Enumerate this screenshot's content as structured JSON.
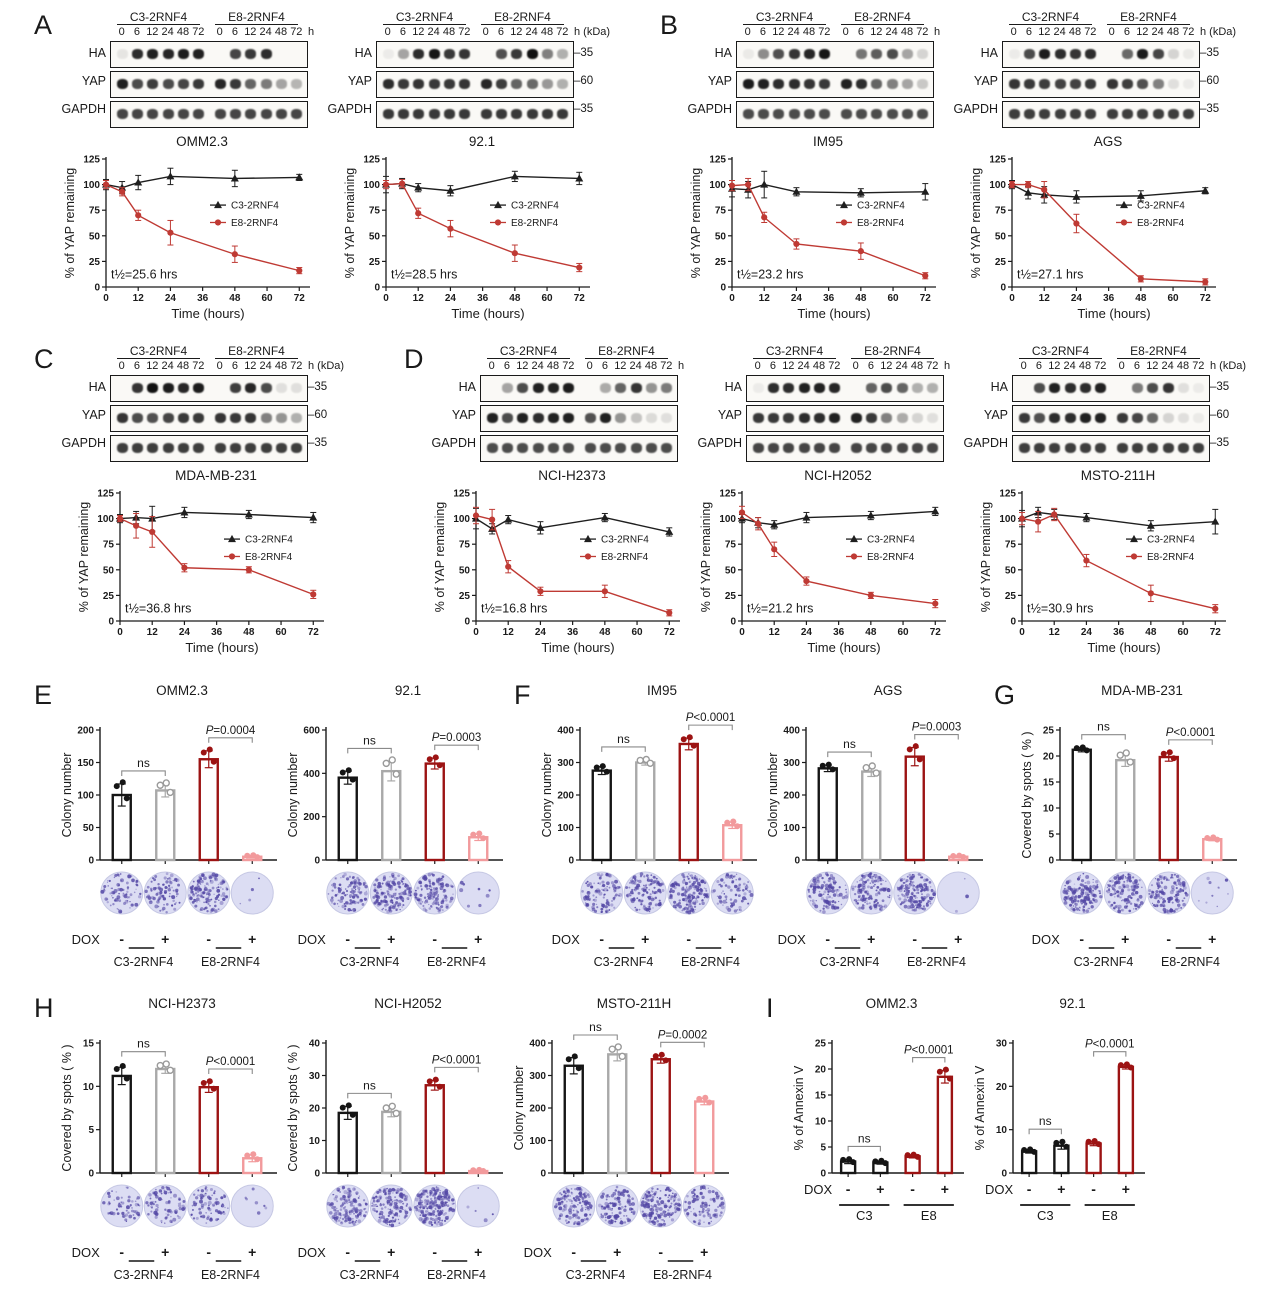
{
  "letters": {
    "a": "A",
    "b": "B",
    "c": "C",
    "d": "D",
    "e": "E",
    "f": "F",
    "g": "G",
    "h": "H",
    "i": "I"
  },
  "labels": {
    "rows": [
      "HA",
      "YAP",
      "GAPDH"
    ],
    "groups": [
      "C3-2RNF4",
      "E8-2RNF4"
    ],
    "time_points": [
      "0",
      "6",
      "12",
      "24",
      "48",
      "72"
    ],
    "hours_unit": "h",
    "kda_unit": "(kDa)",
    "kda_marks": [
      "–35",
      "–60",
      "–35"
    ],
    "dox": "DOX",
    "dox_signs": [
      "-",
      "+",
      "-",
      "+"
    ]
  },
  "colors": {
    "c3": "#1f1f1f",
    "e8": "#bf3a34",
    "bar_black": "#151515",
    "bar_gray": "#a9a9a9",
    "bar_darkred": "#9c1313",
    "bar_pink": "#f29a9c",
    "bracket": "#8a8a8a",
    "dish_bg": "#dcddf3",
    "dish_spot": "#5347a5"
  },
  "chart_data": {
    "decay_axis": {
      "ylabel": "% of YAP remaining",
      "xlabel": "Time (hours)",
      "x": [
        0,
        6,
        12,
        24,
        48,
        72
      ],
      "xticks": [
        0,
        12,
        24,
        36,
        48,
        60,
        72
      ],
      "yticks": [
        0,
        25,
        50,
        75,
        100,
        125
      ],
      "xmax": 76,
      "ymax": 125
    },
    "decay_charts": [
      {
        "type": "line",
        "panel": "A",
        "title": "OMM2.3",
        "thalf": "t½=25.6 hrs",
        "c3": [
          100,
          97,
          102,
          108,
          106,
          107
        ],
        "c3_err": [
          5,
          6,
          7,
          8,
          8,
          3
        ],
        "e8": [
          100,
          93,
          70,
          53,
          32,
          16
        ],
        "e8_err": [
          4,
          4,
          5,
          12,
          8,
          3
        ],
        "legend": [
          "C3-2RNF4",
          "E8-2RNF4"
        ]
      },
      {
        "type": "line",
        "panel": "A",
        "title": "92.1",
        "thalf": "t½=28.5 hrs",
        "c3": [
          100,
          101,
          97,
          94,
          108,
          106
        ],
        "c3_err": [
          8,
          5,
          4,
          5,
          5,
          6
        ],
        "e8": [
          100,
          101,
          72,
          57,
          33,
          19
        ],
        "e8_err": [
          4,
          4,
          5,
          8,
          8,
          4
        ],
        "legend": [
          "C3-2RNF4",
          "E8-2RNF4"
        ]
      },
      {
        "type": "line",
        "panel": "B",
        "title": "IM95",
        "thalf": "t½=23.2 hrs",
        "c3": [
          96,
          95,
          100,
          93,
          92,
          93
        ],
        "c3_err": [
          8,
          8,
          13,
          4,
          4,
          8
        ],
        "e8": [
          99,
          100,
          68,
          42,
          35,
          11
        ],
        "e8_err": [
          5,
          6,
          5,
          5,
          8,
          3
        ],
        "legend": [
          "C3-2RNF4",
          "E8-2RNF4"
        ]
      },
      {
        "type": "line",
        "panel": "B",
        "title": "AGS",
        "thalf": "t½=27.1 hrs",
        "c3": [
          100,
          92,
          90,
          88,
          89,
          94
        ],
        "c3_err": [
          4,
          6,
          8,
          6,
          5,
          3
        ],
        "e8": [
          100,
          100,
          95,
          62,
          8,
          5
        ],
        "e8_err": [
          3,
          3,
          8,
          9,
          3,
          3
        ],
        "legend": [
          "C3-2RNF4",
          "E8-2RNF4"
        ]
      },
      {
        "type": "line",
        "panel": "C",
        "title": "MDA-MB-231",
        "thalf": "t½=36.8 hrs",
        "c3": [
          100,
          101,
          100,
          106,
          104,
          101
        ],
        "c3_err": [
          4,
          6,
          12,
          5,
          4,
          5
        ],
        "e8": [
          100,
          93,
          87,
          52,
          50,
          26
        ],
        "e8_err": [
          3,
          12,
          15,
          4,
          3,
          4
        ],
        "legend": [
          "C3-2RNF4",
          "E8-2RNF4"
        ]
      },
      {
        "type": "line",
        "panel": "D",
        "title": "NCI-H2373",
        "thalf": "t½=16.8 hrs",
        "c3": [
          100,
          90,
          99,
          91,
          101,
          87
        ],
        "c3_err": [
          10,
          5,
          4,
          6,
          4,
          4
        ],
        "e8": [
          103,
          99,
          53,
          29,
          29,
          8
        ],
        "e8_err": [
          8,
          10,
          6,
          4,
          6,
          3
        ],
        "legend": [
          "C3-2RNF4",
          "E8-2RNF4"
        ]
      },
      {
        "type": "line",
        "panel": "D",
        "title": "NCI-H2052",
        "thalf": "t½=21.2 hrs",
        "c3": [
          100,
          96,
          94,
          101,
          103,
          107
        ],
        "c3_err": [
          4,
          5,
          4,
          5,
          4,
          4
        ],
        "e8": [
          106,
          95,
          70,
          39,
          25,
          17
        ],
        "e8_err": [
          6,
          6,
          7,
          4,
          3,
          4
        ],
        "legend": [
          "C3-2RNF4",
          "E8-2RNF4"
        ]
      },
      {
        "type": "line",
        "panel": "D",
        "title": "MSTO-211H",
        "thalf": "t½=30.9 hrs",
        "c3": [
          100,
          106,
          104,
          101,
          93,
          97
        ],
        "c3_err": [
          8,
          5,
          5,
          4,
          5,
          12
        ],
        "e8": [
          100,
          97,
          104,
          59,
          27,
          12
        ],
        "e8_err": [
          6,
          10,
          6,
          6,
          8,
          4
        ],
        "legend": [
          "C3-2RNF4",
          "E8-2RNF4"
        ]
      }
    ],
    "blots": [
      {
        "panel": "A",
        "show_kda": false,
        "ha": [
          0.08,
          0.85,
          0.9,
          0.88,
          0.92,
          0.9,
          0,
          0.75,
          0.8,
          0.85,
          0.04,
          0.03
        ],
        "yap": [
          0.9,
          0.72,
          0.78,
          0.72,
          0.75,
          0.8,
          0.88,
          0.8,
          0.62,
          0.52,
          0.35,
          0.28
        ],
        "gapdh": [
          0.75,
          0.75,
          0.75,
          0.75,
          0.75,
          0.75,
          0.75,
          0.75,
          0.75,
          0.75,
          0.75,
          0.75
        ]
      },
      {
        "panel": "A",
        "show_kda": true,
        "ha": [
          0.05,
          0.35,
          0.85,
          0.95,
          0.8,
          0.82,
          0,
          0.7,
          0.8,
          0.97,
          0.5,
          0.3
        ],
        "yap": [
          0.85,
          0.8,
          0.82,
          0.8,
          0.8,
          0.82,
          0.88,
          0.78,
          0.62,
          0.6,
          0.4,
          0.3
        ],
        "gapdh": [
          0.8,
          0.8,
          0.8,
          0.8,
          0.8,
          0.8,
          0.8,
          0.8,
          0.8,
          0.8,
          0.8,
          0.8
        ]
      },
      {
        "panel": "B",
        "show_kda": false,
        "ha": [
          0.06,
          0.45,
          0.7,
          0.82,
          0.88,
          0.95,
          0,
          0.55,
          0.65,
          0.72,
          0.35,
          0.15
        ],
        "yap": [
          0.92,
          0.9,
          0.85,
          0.85,
          0.82,
          0.8,
          0.9,
          0.85,
          0.62,
          0.5,
          0.35,
          0.2
        ],
        "gapdh": [
          0.72,
          0.72,
          0.72,
          0.72,
          0.72,
          0.72,
          0.72,
          0.72,
          0.72,
          0.72,
          0.72,
          0.72
        ]
      },
      {
        "panel": "B",
        "show_kda": true,
        "ha": [
          0.05,
          0.72,
          0.92,
          0.85,
          0.82,
          0.85,
          0,
          0.6,
          0.92,
          0.75,
          0.15,
          0.06
        ],
        "yap": [
          0.82,
          0.8,
          0.78,
          0.76,
          0.76,
          0.8,
          0.82,
          0.78,
          0.7,
          0.5,
          0.1,
          0.05
        ],
        "gapdh": [
          0.78,
          0.78,
          0.78,
          0.78,
          0.78,
          0.78,
          0.78,
          0.78,
          0.78,
          0.78,
          0.78,
          0.78
        ]
      },
      {
        "panel": "C",
        "show_kda": true,
        "ha": [
          0.02,
          0.82,
          0.97,
          0.92,
          0.88,
          0.92,
          0,
          0.78,
          0.88,
          0.72,
          0.1,
          0.1
        ],
        "yap": [
          0.82,
          0.72,
          0.7,
          0.75,
          0.8,
          0.8,
          0.82,
          0.8,
          0.82,
          0.5,
          0.42,
          0.3
        ],
        "gapdh": [
          0.78,
          0.78,
          0.78,
          0.78,
          0.78,
          0.78,
          0.78,
          0.78,
          0.78,
          0.78,
          0.78,
          0.78
        ]
      },
      {
        "panel": "D",
        "show_kda": false,
        "ha": [
          0.02,
          0.35,
          0.72,
          0.9,
          0.9,
          0.92,
          0,
          0.32,
          0.62,
          0.82,
          0.42,
          0.52
        ],
        "yap": [
          0.9,
          0.72,
          0.9,
          0.85,
          0.9,
          0.9,
          0.7,
          0.9,
          0.42,
          0.22,
          0.12,
          0.1
        ],
        "gapdh": [
          0.72,
          0.72,
          0.72,
          0.72,
          0.72,
          0.72,
          0.72,
          0.72,
          0.72,
          0.72,
          0.72,
          0.72
        ]
      },
      {
        "panel": "D",
        "show_kda": false,
        "ha": [
          0.05,
          0.85,
          0.85,
          0.9,
          0.9,
          0.88,
          0,
          0.62,
          0.72,
          0.62,
          0.3,
          0.3
        ],
        "yap": [
          0.8,
          0.8,
          0.8,
          0.85,
          0.85,
          0.9,
          0.9,
          0.8,
          0.5,
          0.32,
          0.15,
          0.1
        ],
        "gapdh": [
          0.75,
          0.75,
          0.75,
          0.75,
          0.75,
          0.75,
          0.75,
          0.75,
          0.75,
          0.75,
          0.75,
          0.75
        ]
      },
      {
        "panel": "D",
        "show_kda": true,
        "ha": [
          0.02,
          0.72,
          0.9,
          0.85,
          0.85,
          0.9,
          0,
          0.52,
          0.72,
          0.82,
          0.1,
          0.05
        ],
        "yap": [
          0.8,
          0.7,
          0.85,
          0.85,
          0.9,
          0.9,
          0.8,
          0.75,
          0.6,
          0.15,
          0.1,
          0.06
        ],
        "gapdh": [
          0.78,
          0.78,
          0.78,
          0.78,
          0.78,
          0.78,
          0.78,
          0.78,
          0.78,
          0.78,
          0.78,
          0.78
        ]
      }
    ],
    "bar_charts": [
      {
        "type": "bar",
        "panel": "E",
        "title": "OMM2.3",
        "ylabel": "Colony number",
        "ymax": 200,
        "yticks": [
          0,
          50,
          100,
          150,
          200
        ],
        "values": [
          100,
          107,
          155,
          5
        ],
        "errs": [
          17,
          10,
          13,
          2
        ],
        "styles": [
          "black",
          "gray",
          "darkred",
          "pink"
        ],
        "ns_label": "ns",
        "p_label": "P=0.0004",
        "dishes": [
          0.3,
          0.32,
          0.5,
          0.015
        ],
        "group_labels": [
          "C3-2RNF4",
          "E8-2RNF4"
        ]
      },
      {
        "type": "bar",
        "panel": "E",
        "title": "92.1",
        "ylabel": "Colony number",
        "ymax": 600,
        "yticks": [
          0,
          200,
          400,
          600
        ],
        "values": [
          380,
          410,
          445,
          105
        ],
        "errs": [
          30,
          45,
          25,
          15
        ],
        "styles": [
          "black",
          "gray",
          "darkred",
          "pink"
        ],
        "ns_label": "ns",
        "p_label": "P=0.0003",
        "dishes": [
          0.4,
          0.55,
          0.5,
          0.03
        ],
        "group_labels": [
          "C3-2RNF4",
          "E8-2RNF4"
        ]
      },
      {
        "type": "bar",
        "panel": "F",
        "title": "IM95",
        "ylabel": "Colony number",
        "ymax": 400,
        "yticks": [
          0,
          100,
          200,
          300,
          400
        ],
        "values": [
          275,
          300,
          357,
          107
        ],
        "errs": [
          12,
          8,
          18,
          10
        ],
        "styles": [
          "black",
          "gray",
          "darkred",
          "pink"
        ],
        "ns_label": "ns",
        "p_label": "P<0.0001",
        "dishes": [
          0.38,
          0.5,
          0.62,
          0.3
        ],
        "group_labels": [
          "C3-2RNF4",
          "E8-2RNF4"
        ]
      },
      {
        "type": "bar",
        "panel": "F",
        "title": "AGS",
        "ylabel": "Colony number",
        "ymax": 400,
        "yticks": [
          0,
          100,
          200,
          300,
          400
        ],
        "values": [
          282,
          272,
          318,
          10
        ],
        "errs": [
          10,
          15,
          28,
          3
        ],
        "styles": [
          "black",
          "gray",
          "darkred",
          "pink"
        ],
        "ns_label": "ns",
        "p_label": "P=0.0003",
        "dishes": [
          0.45,
          0.5,
          0.6,
          0.012
        ],
        "group_labels": [
          "C3-2RNF4",
          "E8-2RNF4"
        ]
      },
      {
        "type": "bar",
        "panel": "G",
        "title": "MDA-MB-231",
        "ylabel": "Covered by spots ( % )",
        "ymax": 25,
        "yticks": [
          0,
          5,
          10,
          15,
          20,
          25
        ],
        "values": [
          21.2,
          19.2,
          19.8,
          4.0
        ],
        "errs": [
          0.4,
          1.2,
          0.8,
          0.3
        ],
        "styles": [
          "black",
          "gray",
          "darkred",
          "pink"
        ],
        "ns_label": "ns",
        "p_label": "P<0.0001",
        "dishes": [
          0.55,
          0.5,
          0.5,
          0.04
        ],
        "group_labels": [
          "C3-2RNF4",
          "E8-2RNF4"
        ]
      },
      {
        "type": "bar",
        "panel": "H",
        "title": "NCI-H2373",
        "ylabel": "Covered by spots ( % )",
        "ymax": 15,
        "yticks": [
          0,
          5,
          10,
          15
        ],
        "values": [
          11.2,
          12.0,
          9.9,
          1.7
        ],
        "errs": [
          1.0,
          0.5,
          0.6,
          0.4
        ],
        "styles": [
          "black",
          "gray",
          "darkred",
          "pink"
        ],
        "ns_label": "ns",
        "p_label": "P<0.0001",
        "dishes": [
          0.22,
          0.28,
          0.28,
          0.025
        ],
        "group_labels": [
          "C3-2RNF4",
          "E8-2RNF4"
        ]
      },
      {
        "type": "bar",
        "panel": "H",
        "title": "NCI-H2052",
        "ylabel": "Covered by spots ( % )",
        "ymax": 40,
        "yticks": [
          0,
          10,
          20,
          30,
          40
        ],
        "values": [
          18.5,
          18.8,
          27,
          0.6
        ],
        "errs": [
          2.0,
          1.5,
          1.5,
          0.3
        ],
        "styles": [
          "black",
          "gray",
          "darkred",
          "pink"
        ],
        "ns_label": "ns",
        "p_label": "P<0.0001",
        "dishes": [
          0.5,
          0.55,
          0.75,
          0.02
        ],
        "group_labels": [
          "C3-2RNF4",
          "E8-2RNF4"
        ]
      },
      {
        "type": "bar",
        "panel": "H",
        "title": "MSTO-211H",
        "ylabel": "Colony number",
        "ymax": 400,
        "yticks": [
          0,
          100,
          200,
          300,
          400
        ],
        "values": [
          330,
          365,
          350,
          220
        ],
        "errs": [
          25,
          20,
          12,
          10
        ],
        "styles": [
          "black",
          "gray",
          "darkred",
          "pink"
        ],
        "ns_label": "ns",
        "p_label": "P=0.0002",
        "dishes": [
          0.5,
          0.45,
          0.55,
          0.35
        ],
        "group_labels": [
          "C3-2RNF4",
          "E8-2RNF4"
        ]
      },
      {
        "type": "bar",
        "panel": "I",
        "title": "OMM2.3",
        "ylabel": "% of Annexin V",
        "ymax": 25,
        "yticks": [
          0,
          5,
          10,
          15,
          20,
          25
        ],
        "values": [
          2.2,
          2.0,
          3.2,
          18.5
        ],
        "errs": [
          0.4,
          0.3,
          0.3,
          1.2
        ],
        "styles": [
          "black",
          "black",
          "darkred",
          "darkred"
        ],
        "ns_label": "ns",
        "p_label": "P<0.0001",
        "group_labels": [
          "C3",
          "E8"
        ]
      },
      {
        "type": "bar",
        "panel": "I",
        "title": "92.1",
        "ylabel": "% of Annexin V",
        "ymax": 30,
        "yticks": [
          0,
          10,
          20,
          30
        ],
        "values": [
          5,
          6.3,
          6.8,
          24.5
        ],
        "errs": [
          0.4,
          0.8,
          0.5,
          0.5
        ],
        "styles": [
          "black",
          "black",
          "darkred",
          "darkred"
        ],
        "ns_label": "ns",
        "p_label": "P<0.0001",
        "group_labels": [
          "C3",
          "E8"
        ]
      }
    ]
  }
}
